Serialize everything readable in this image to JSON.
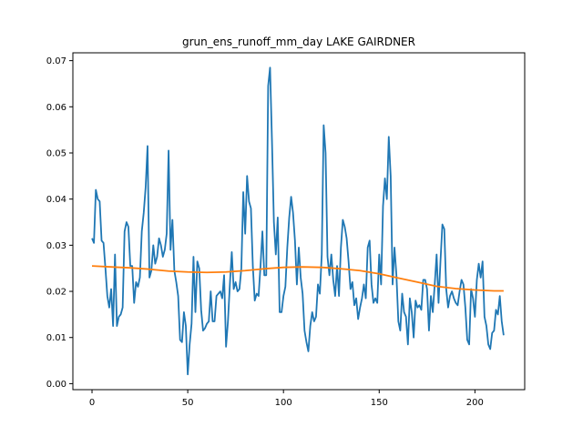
{
  "chart_data": {
    "type": "line",
    "title": "grun_ens_runoff_mm_day LAKE GAIRDNER",
    "xlabel": "",
    "ylabel": "",
    "xlim": [
      -10,
      226
    ],
    "ylim": [
      -0.0013,
      0.0717
    ],
    "xticks": [
      0,
      50,
      100,
      150,
      200
    ],
    "yticks": [
      0.0,
      0.01,
      0.02,
      0.03,
      0.04,
      0.05,
      0.06,
      0.07
    ],
    "ytick_labels": [
      "0.00",
      "0.01",
      "0.02",
      "0.03",
      "0.04",
      "0.05",
      "0.06",
      "0.07"
    ],
    "grid": false,
    "series": [
      {
        "color": "#1f77b4",
        "points": [
          [
            0,
            0.0315
          ],
          [
            1,
            0.0305
          ],
          [
            2,
            0.042
          ],
          [
            3,
            0.04
          ],
          [
            4,
            0.0395
          ],
          [
            5,
            0.031
          ],
          [
            6,
            0.0305
          ],
          [
            7,
            0.025
          ],
          [
            8,
            0.019
          ],
          [
            9,
            0.0165
          ],
          [
            10,
            0.0205
          ],
          [
            11,
            0.0125
          ],
          [
            12,
            0.028
          ],
          [
            13,
            0.0125
          ],
          [
            14,
            0.0145
          ],
          [
            15,
            0.015
          ],
          [
            16,
            0.0165
          ],
          [
            17,
            0.033
          ],
          [
            18,
            0.035
          ],
          [
            19,
            0.034
          ],
          [
            20,
            0.0255
          ],
          [
            21,
            0.0255
          ],
          [
            22,
            0.0175
          ],
          [
            23,
            0.022
          ],
          [
            24,
            0.021
          ],
          [
            25,
            0.023
          ],
          [
            26,
            0.033
          ],
          [
            27,
            0.037
          ],
          [
            28,
            0.0425
          ],
          [
            29,
            0.0515
          ],
          [
            30,
            0.023
          ],
          [
            31,
            0.0245
          ],
          [
            32,
            0.03
          ],
          [
            33,
            0.026
          ],
          [
            34,
            0.0275
          ],
          [
            35,
            0.0315
          ],
          [
            36,
            0.03
          ],
          [
            37,
            0.0275
          ],
          [
            38,
            0.029
          ],
          [
            39,
            0.0325
          ],
          [
            40,
            0.0505
          ],
          [
            41,
            0.029
          ],
          [
            42,
            0.0355
          ],
          [
            43,
            0.0245
          ],
          [
            44,
            0.022
          ],
          [
            45,
            0.019
          ],
          [
            46,
            0.0095
          ],
          [
            47,
            0.009
          ],
          [
            48,
            0.0155
          ],
          [
            49,
            0.0125
          ],
          [
            50,
            0.002
          ],
          [
            51,
            0.0085
          ],
          [
            52,
            0.013
          ],
          [
            53,
            0.0275
          ],
          [
            54,
            0.0155
          ],
          [
            55,
            0.0265
          ],
          [
            56,
            0.025
          ],
          [
            57,
            0.016
          ],
          [
            58,
            0.0115
          ],
          [
            59,
            0.012
          ],
          [
            60,
            0.013
          ],
          [
            61,
            0.0135
          ],
          [
            62,
            0.02
          ],
          [
            63,
            0.0135
          ],
          [
            64,
            0.0135
          ],
          [
            65,
            0.019
          ],
          [
            66,
            0.0195
          ],
          [
            67,
            0.02
          ],
          [
            68,
            0.0185
          ],
          [
            69,
            0.0235
          ],
          [
            70,
            0.008
          ],
          [
            71,
            0.0135
          ],
          [
            72,
            0.0215
          ],
          [
            73,
            0.0285
          ],
          [
            74,
            0.0205
          ],
          [
            75,
            0.022
          ],
          [
            76,
            0.02
          ],
          [
            77,
            0.0205
          ],
          [
            78,
            0.025
          ],
          [
            79,
            0.0415
          ],
          [
            80,
            0.0325
          ],
          [
            81,
            0.045
          ],
          [
            82,
            0.0395
          ],
          [
            83,
            0.038
          ],
          [
            84,
            0.0255
          ],
          [
            85,
            0.018
          ],
          [
            86,
            0.0195
          ],
          [
            87,
            0.019
          ],
          [
            88,
            0.0255
          ],
          [
            89,
            0.033
          ],
          [
            90,
            0.0235
          ],
          [
            91,
            0.0235
          ],
          [
            92,
            0.0645
          ],
          [
            93,
            0.0685
          ],
          [
            94,
            0.0525
          ],
          [
            95,
            0.035
          ],
          [
            96,
            0.028
          ],
          [
            97,
            0.036
          ],
          [
            98,
            0.0155
          ],
          [
            99,
            0.0155
          ],
          [
            100,
            0.019
          ],
          [
            101,
            0.021
          ],
          [
            102,
            0.0295
          ],
          [
            103,
            0.036
          ],
          [
            104,
            0.0405
          ],
          [
            105,
            0.037
          ],
          [
            106,
            0.031
          ],
          [
            107,
            0.0215
          ],
          [
            108,
            0.0295
          ],
          [
            109,
            0.023
          ],
          [
            110,
            0.0195
          ],
          [
            111,
            0.0115
          ],
          [
            112,
            0.009
          ],
          [
            113,
            0.007
          ],
          [
            114,
            0.0125
          ],
          [
            115,
            0.0155
          ],
          [
            116,
            0.0135
          ],
          [
            117,
            0.0145
          ],
          [
            118,
            0.0215
          ],
          [
            119,
            0.0195
          ],
          [
            120,
            0.028
          ],
          [
            121,
            0.056
          ],
          [
            122,
            0.05
          ],
          [
            123,
            0.0275
          ],
          [
            124,
            0.0235
          ],
          [
            125,
            0.028
          ],
          [
            126,
            0.0225
          ],
          [
            127,
            0.019
          ],
          [
            128,
            0.0255
          ],
          [
            129,
            0.019
          ],
          [
            130,
            0.0295
          ],
          [
            131,
            0.0355
          ],
          [
            132,
            0.034
          ],
          [
            133,
            0.0315
          ],
          [
            134,
            0.0265
          ],
          [
            135,
            0.0205
          ],
          [
            136,
            0.022
          ],
          [
            137,
            0.017
          ],
          [
            138,
            0.0185
          ],
          [
            139,
            0.014
          ],
          [
            140,
            0.0165
          ],
          [
            141,
            0.0185
          ],
          [
            142,
            0.0215
          ],
          [
            143,
            0.0185
          ],
          [
            144,
            0.0295
          ],
          [
            145,
            0.031
          ],
          [
            146,
            0.0215
          ],
          [
            147,
            0.0175
          ],
          [
            148,
            0.0185
          ],
          [
            149,
            0.0175
          ],
          [
            150,
            0.028
          ],
          [
            151,
            0.0215
          ],
          [
            152,
            0.0385
          ],
          [
            153,
            0.0445
          ],
          [
            154,
            0.04
          ],
          [
            155,
            0.0535
          ],
          [
            156,
            0.045
          ],
          [
            157,
            0.0215
          ],
          [
            158,
            0.0295
          ],
          [
            159,
            0.0235
          ],
          [
            160,
            0.0135
          ],
          [
            161,
            0.0115
          ],
          [
            162,
            0.0195
          ],
          [
            163,
            0.0155
          ],
          [
            164,
            0.0145
          ],
          [
            165,
            0.0085
          ],
          [
            166,
            0.0185
          ],
          [
            167,
            0.0155
          ],
          [
            168,
            0.01
          ],
          [
            169,
            0.018
          ],
          [
            170,
            0.0165
          ],
          [
            171,
            0.017
          ],
          [
            172,
            0.016
          ],
          [
            173,
            0.0225
          ],
          [
            174,
            0.0225
          ],
          [
            175,
            0.0205
          ],
          [
            176,
            0.0115
          ],
          [
            177,
            0.019
          ],
          [
            178,
            0.0155
          ],
          [
            179,
            0.0215
          ],
          [
            180,
            0.028
          ],
          [
            181,
            0.0175
          ],
          [
            182,
            0.0265
          ],
          [
            183,
            0.0345
          ],
          [
            184,
            0.0335
          ],
          [
            185,
            0.0205
          ],
          [
            186,
            0.0165
          ],
          [
            187,
            0.019
          ],
          [
            188,
            0.02
          ],
          [
            189,
            0.0185
          ],
          [
            190,
            0.0175
          ],
          [
            191,
            0.017
          ],
          [
            192,
            0.02
          ],
          [
            193,
            0.0225
          ],
          [
            194,
            0.0215
          ],
          [
            195,
            0.0165
          ],
          [
            196,
            0.0095
          ],
          [
            197,
            0.0085
          ],
          [
            198,
            0.0205
          ],
          [
            199,
            0.0185
          ],
          [
            200,
            0.0145
          ],
          [
            201,
            0.0225
          ],
          [
            202,
            0.026
          ],
          [
            203,
            0.023
          ],
          [
            204,
            0.0265
          ],
          [
            205,
            0.0145
          ],
          [
            206,
            0.0125
          ],
          [
            207,
            0.0085
          ],
          [
            208,
            0.0075
          ],
          [
            209,
            0.011
          ],
          [
            210,
            0.0115
          ],
          [
            211,
            0.016
          ],
          [
            212,
            0.015
          ],
          [
            213,
            0.019
          ],
          [
            214,
            0.0135
          ],
          [
            215,
            0.0105
          ]
        ]
      },
      {
        "color": "#ff7f0e",
        "points": [
          [
            0,
            0.0255
          ],
          [
            10,
            0.0253
          ],
          [
            20,
            0.0251
          ],
          [
            30,
            0.0248
          ],
          [
            40,
            0.0244
          ],
          [
            50,
            0.0242
          ],
          [
            60,
            0.0241
          ],
          [
            70,
            0.0242
          ],
          [
            80,
            0.0245
          ],
          [
            90,
            0.0249
          ],
          [
            100,
            0.0252
          ],
          [
            110,
            0.0253
          ],
          [
            120,
            0.0252
          ],
          [
            130,
            0.0249
          ],
          [
            140,
            0.0245
          ],
          [
            150,
            0.0238
          ],
          [
            160,
            0.0229
          ],
          [
            170,
            0.022
          ],
          [
            180,
            0.0211
          ],
          [
            190,
            0.0206
          ],
          [
            200,
            0.0203
          ],
          [
            210,
            0.0201
          ],
          [
            215,
            0.0201
          ]
        ]
      }
    ]
  }
}
